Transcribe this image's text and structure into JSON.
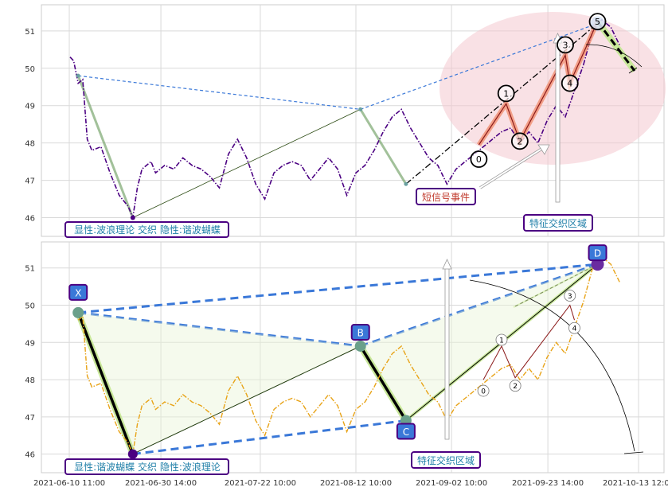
{
  "chart_data": [
    {
      "type": "line",
      "panel": "top",
      "ylim": [
        45.5,
        51.7
      ],
      "yticks": [
        46,
        47,
        48,
        49,
        50,
        51
      ],
      "grid": true,
      "series": [
        {
          "name": "",
          "color": "#4B0082",
          "style": "dash-dot",
          "x": [
            "2021-06-10 15:00",
            "2021-06-11 10:00",
            "2021-06-12 10:00",
            "2021-06-13 10:00",
            "2021-06-14 10:00",
            "2021-06-15 10:00",
            "2021-06-17 10:00",
            "2021-06-19 10:00",
            "2021-06-21 10:00",
            "2021-06-23 10:00",
            "2021-06-24 10:00",
            "2021-06-25 10:00",
            "2021-06-26 10:00",
            "2021-06-27 10:00",
            "2021-06-28 10:00",
            "2021-06-29 10:00",
            "2021-07-01 10:00",
            "2021-07-03 10:00",
            "2021-07-05 10:00",
            "2021-07-07 10:00",
            "2021-07-09 10:00",
            "2021-07-11 10:00",
            "2021-07-13 10:00",
            "2021-07-15 10:00",
            "2021-07-17 10:00",
            "2021-07-19 10:00",
            "2021-07-21 10:00",
            "2021-07-23 10:00",
            "2021-07-25 10:00",
            "2021-07-27 10:00",
            "2021-07-29 10:00",
            "2021-07-31 10:00",
            "2021-08-02 10:00",
            "2021-08-04 10:00",
            "2021-08-06 10:00",
            "2021-08-08 10:00",
            "2021-08-10 10:00",
            "2021-08-12 10:00",
            "2021-08-14 10:00",
            "2021-08-16 10:00",
            "2021-08-18 10:00",
            "2021-08-20 10:00",
            "2021-08-22 10:00",
            "2021-08-24 10:00",
            "2021-08-26 10:00",
            "2021-08-28 10:00",
            "2021-08-30 10:00",
            "2021-09-01 10:00",
            "2021-09-03 10:00",
            "2021-09-05 10:00",
            "2021-09-07 10:00",
            "2021-09-09 10:00",
            "2021-09-11 10:00",
            "2021-09-13 10:00",
            "2021-09-15 10:00",
            "2021-09-17 10:00",
            "2021-09-19 10:00",
            "2021-09-21 10:00",
            "2021-09-23 10:00",
            "2021-09-25 10:00",
            "2021-09-27 10:00",
            "2021-09-29 10:00",
            "2021-10-01 10:00"
          ],
          "y": [
            50.3,
            50.2,
            49.6,
            49.7,
            48.1,
            47.8,
            47.9,
            47.2,
            46.6,
            46.3,
            46.0,
            46.8,
            47.3,
            47.4,
            47.5,
            47.2,
            47.4,
            47.3,
            47.6,
            47.4,
            47.3,
            47.1,
            46.8,
            47.7,
            48.1,
            47.6,
            46.9,
            46.5,
            47.2,
            47.4,
            47.5,
            47.4,
            47.0,
            47.3,
            47.6,
            47.3,
            46.6,
            47.2,
            47.4,
            47.8,
            48.3,
            48.7,
            48.9,
            48.4,
            48.0,
            47.6,
            47.4,
            46.9,
            47.3,
            47.5,
            47.7,
            47.9,
            48.1,
            48.3,
            48.4,
            48.0,
            48.3,
            48.0,
            48.6,
            49.0,
            48.7,
            49.4,
            50.1
          ]
        },
        {
          "name": "",
          "color": "#4B0082",
          "style": "dash-dot",
          "x": [
            "2021-10-01 10:00",
            "2021-10-03 10:00",
            "2021-10-05 10:00",
            "2021-10-07 10:00",
            "2021-10-09 10:00"
          ],
          "y": [
            50.1,
            51.0,
            51.3,
            51.1,
            50.6
          ]
        }
      ],
      "harmonic": {
        "X": [
          "2021-06-12 10:00",
          49.8
        ],
        "A": [
          "2021-06-24 10:00",
          46.0
        ],
        "B": [
          "2021-08-13 10:00",
          48.9
        ],
        "C": [
          "2021-08-23 10:00",
          46.9
        ],
        "D": [
          "2021-10-04 12:00",
          51.2
        ]
      },
      "waves": {
        "labels": [
          "0",
          "1",
          "2",
          "3",
          "4",
          "5"
        ],
        "points": [
          [
            "2021-09-08 10:00",
            47.95
          ],
          [
            "2021-09-14 10:00",
            49.05
          ],
          [
            "2021-09-17 10:00",
            48.05
          ],
          [
            "2021-09-27 10:00",
            50.35
          ],
          [
            "2021-09-28 10:00",
            49.6
          ],
          [
            "2021-10-04 12:00",
            51.25
          ]
        ]
      },
      "annotations": {
        "bottom_left_box": "显性:波浪理论 交织 隐性:谐波蝴蝶",
        "signal_box": "短信号事件",
        "zone_box": "特征交织区域"
      }
    },
    {
      "type": "line",
      "panel": "bottom",
      "ylim": [
        45.5,
        51.7
      ],
      "yticks": [
        46,
        47,
        48,
        49,
        50,
        51
      ],
      "grid": true,
      "xticks": [
        "2021-06-10 11:00",
        "2021-06-30 14:00",
        "2021-07-22 10:00",
        "2021-08-12 10:00",
        "2021-09-02 10:00",
        "2021-09-23 14:00",
        "2021-10-13 12:00"
      ],
      "series": [
        {
          "name": "",
          "color": "#E8A317",
          "style": "dash-dot",
          "x": [
            "2021-06-12 10:00",
            "2021-06-13 10:00",
            "2021-06-14 10:00",
            "2021-06-15 10:00",
            "2021-06-17 10:00",
            "2021-06-19 10:00",
            "2021-06-21 10:00",
            "2021-06-23 10:00",
            "2021-06-24 10:00",
            "2021-06-25 10:00",
            "2021-06-26 10:00",
            "2021-06-27 10:00",
            "2021-06-28 10:00",
            "2021-06-29 10:00",
            "2021-07-01 10:00",
            "2021-07-03 10:00",
            "2021-07-05 10:00",
            "2021-07-07 10:00",
            "2021-07-09 10:00",
            "2021-07-11 10:00",
            "2021-07-13 10:00",
            "2021-07-15 10:00",
            "2021-07-17 10:00",
            "2021-07-19 10:00",
            "2021-07-21 10:00",
            "2021-07-23 10:00",
            "2021-07-25 10:00",
            "2021-07-27 10:00",
            "2021-07-29 10:00",
            "2021-07-31 10:00",
            "2021-08-02 10:00",
            "2021-08-04 10:00",
            "2021-08-06 10:00",
            "2021-08-08 10:00",
            "2021-08-10 10:00",
            "2021-08-12 10:00",
            "2021-08-14 10:00",
            "2021-08-16 10:00",
            "2021-08-18 10:00",
            "2021-08-20 10:00",
            "2021-08-22 10:00",
            "2021-08-24 10:00",
            "2021-08-26 10:00",
            "2021-08-28 10:00",
            "2021-08-30 10:00",
            "2021-09-01 10:00",
            "2021-09-03 10:00",
            "2021-09-05 10:00",
            "2021-09-07 10:00",
            "2021-09-09 10:00",
            "2021-09-11 10:00",
            "2021-09-13 10:00",
            "2021-09-15 10:00",
            "2021-09-17 10:00",
            "2021-09-19 10:00",
            "2021-09-21 10:00",
            "2021-09-23 10:00",
            "2021-09-25 10:00",
            "2021-09-27 10:00",
            "2021-09-29 10:00",
            "2021-10-01 10:00",
            "2021-10-03 10:00",
            "2021-10-05 10:00",
            "2021-10-07 10:00",
            "2021-10-09 10:00"
          ],
          "y": [
            49.6,
            49.7,
            48.1,
            47.8,
            47.9,
            47.2,
            46.6,
            46.3,
            46.0,
            46.8,
            47.3,
            47.4,
            47.5,
            47.2,
            47.4,
            47.3,
            47.6,
            47.4,
            47.3,
            47.1,
            46.8,
            47.7,
            48.1,
            47.6,
            46.9,
            46.5,
            47.2,
            47.4,
            47.5,
            47.4,
            47.0,
            47.3,
            47.6,
            47.3,
            46.6,
            47.2,
            47.4,
            47.8,
            48.3,
            48.7,
            48.9,
            48.4,
            48.0,
            47.6,
            47.4,
            46.9,
            47.3,
            47.5,
            47.7,
            47.9,
            48.1,
            48.3,
            48.4,
            48.0,
            48.3,
            48.0,
            48.6,
            49.0,
            48.7,
            49.4,
            50.1,
            51.0,
            51.3,
            51.1,
            50.6
          ]
        }
      ],
      "harmonic": {
        "X": [
          "2021-06-12 10:00",
          49.8
        ],
        "A": [
          "2021-06-24 10:00",
          46.0
        ],
        "B": [
          "2021-08-13 10:00",
          48.9
        ],
        "C": [
          "2021-08-23 10:00",
          46.9
        ],
        "D": [
          "2021-10-04 12:00",
          51.1
        ]
      },
      "point_labels": [
        "X",
        "B",
        "C",
        "D"
      ],
      "waves": {
        "labels": [
          "0",
          "1",
          "2",
          "3",
          "4"
        ],
        "points": [
          [
            "2021-09-09 10:00",
            48.0
          ],
          [
            "2021-09-13 10:00",
            48.9
          ],
          [
            "2021-09-16 10:00",
            48.05
          ],
          [
            "2021-09-28 10:00",
            50.0
          ],
          [
            "2021-09-29 10:00",
            49.6
          ]
        ]
      },
      "annotations": {
        "bottom_left_box": "显性:谐波蝴蝶 交织 隐性:波浪理论",
        "zone_box": "特征交织区域"
      }
    }
  ]
}
